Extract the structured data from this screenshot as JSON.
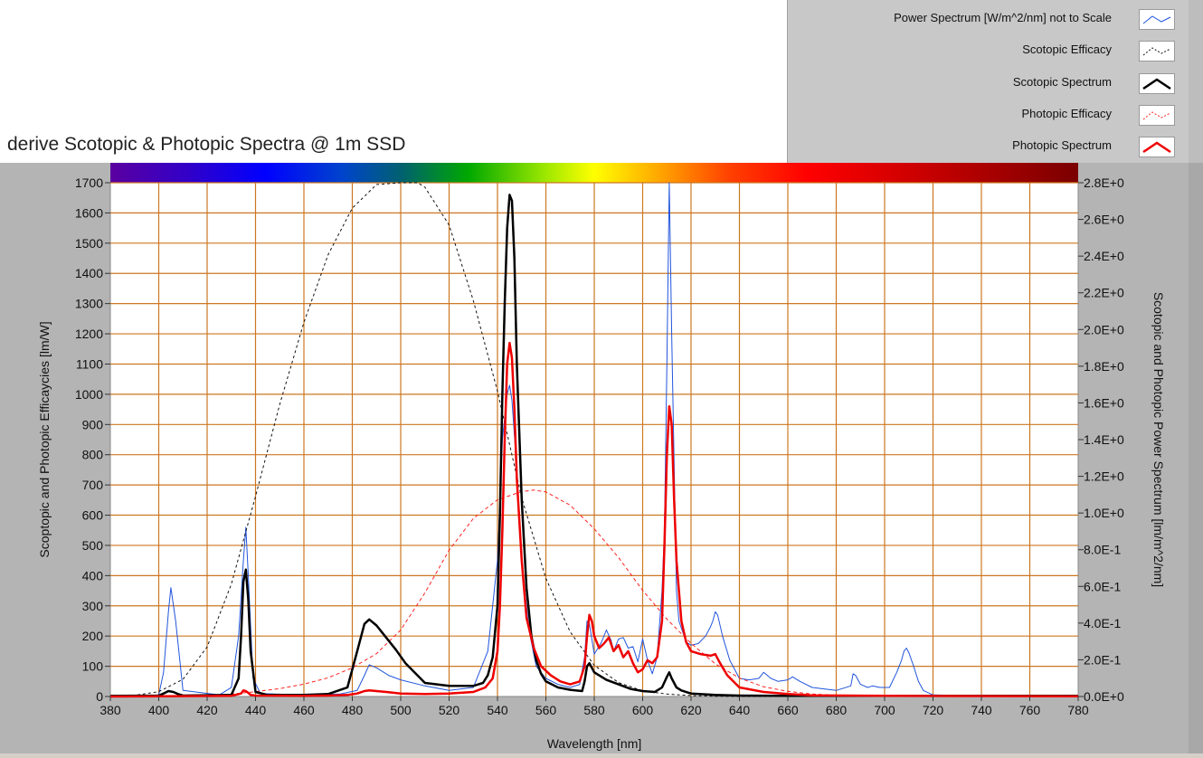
{
  "title": "derive Scotopic & Photopic Spectra @ 1m SSD",
  "legend": [
    {
      "label": "Power Spectrum [W/m^2/nm] not to Scale",
      "color": "#2255dd",
      "style": "thin"
    },
    {
      "label": "Scotopic Efficacy",
      "color": "#111111",
      "style": "dashed"
    },
    {
      "label": "Scotopic Spectrum",
      "color": "#000000",
      "style": "thick"
    },
    {
      "label": "Photopic Efficacy",
      "color": "#ff2222",
      "style": "dashed"
    },
    {
      "label": "Photopic Spectrum",
      "color": "#ee0000",
      "style": "thick"
    }
  ],
  "chart_data": {
    "type": "line",
    "xlabel": "Wavelength [nm]",
    "ylabel": "Scoptopic and Photopic Efficaycies [lm/W]",
    "y2label": "Scotopic and Photopic Power Spectrum [lm/m^2/nm]",
    "xlim": [
      380,
      780
    ],
    "ylim": [
      0,
      1700
    ],
    "y2lim": [
      0,
      2.8
    ],
    "x_ticks": [
      "380",
      "400",
      "420",
      "440",
      "460",
      "480",
      "500",
      "520",
      "540",
      "560",
      "580",
      "600",
      "620",
      "640",
      "660",
      "680",
      "700",
      "720",
      "740",
      "760",
      "780"
    ],
    "y_ticks": [
      "0",
      "100",
      "200",
      "300",
      "400",
      "500",
      "600",
      "700",
      "800",
      "900",
      "1000",
      "1100",
      "1200",
      "1300",
      "1400",
      "1500",
      "1600",
      "1700"
    ],
    "y2_ticks": [
      "0.0E+0",
      "2.0E-1",
      "4.0E-1",
      "6.0E-1",
      "8.0E-1",
      "1.0E+0",
      "1.2E+0",
      "1.4E+0",
      "1.6E+0",
      "1.8E+0",
      "2.0E+0",
      "2.2E+0",
      "2.4E+0",
      "2.6E+0",
      "2.8E+0"
    ],
    "grid": true,
    "colors": {
      "plot_bg": "#ffffff",
      "grid": "#cc7722",
      "frame": "#b4b4b4"
    },
    "series": [
      {
        "name": "Power Spectrum [W/m^2/nm] not to Scale",
        "color": "#2255dd",
        "width": 1,
        "dash": "",
        "x": [
          380,
          395,
          400,
          402,
          404,
          405,
          407,
          410,
          425,
          430,
          433,
          435,
          436,
          437,
          439,
          442,
          460,
          475,
          482,
          485,
          487,
          490,
          495,
          500,
          510,
          520,
          530,
          536,
          540,
          542,
          544,
          545,
          546,
          548,
          550,
          553,
          556,
          560,
          565,
          570,
          574,
          576,
          577,
          578,
          579,
          580,
          583,
          585,
          587,
          588,
          590,
          592,
          594,
          596,
          598,
          600,
          602,
          604,
          606,
          608,
          609,
          610,
          611,
          612,
          614,
          615,
          618,
          620,
          623,
          626,
          628,
          629,
          630,
          631,
          633,
          636,
          640,
          644,
          648,
          650,
          653,
          656,
          660,
          662,
          665,
          670,
          680,
          686,
          687,
          688,
          690,
          693,
          695,
          698,
          702,
          705,
          707,
          708,
          709,
          710,
          712,
          714,
          716,
          720,
          740,
          760,
          780
        ],
        "y": [
          3,
          3,
          5,
          80,
          280,
          360,
          250,
          20,
          5,
          30,
          200,
          450,
          560,
          400,
          60,
          10,
          5,
          8,
          20,
          70,
          105,
          95,
          70,
          55,
          35,
          20,
          30,
          150,
          450,
          850,
          1000,
          1030,
          980,
          750,
          450,
          220,
          100,
          60,
          40,
          30,
          40,
          130,
          250,
          240,
          190,
          140,
          180,
          220,
          185,
          150,
          190,
          195,
          160,
          165,
          115,
          190,
          120,
          75,
          130,
          350,
          550,
          1100,
          1700,
          1200,
          350,
          250,
          180,
          170,
          175,
          200,
          230,
          250,
          280,
          270,
          200,
          120,
          60,
          55,
          60,
          80,
          60,
          50,
          55,
          65,
          50,
          30,
          20,
          35,
          75,
          70,
          40,
          30,
          35,
          30,
          30,
          80,
          120,
          150,
          160,
          145,
          100,
          50,
          20,
          5,
          2,
          2,
          2
        ]
      },
      {
        "name": "Scotopic Efficacy",
        "color": "#111111",
        "width": 1,
        "dash": "3,3",
        "x": [
          380,
          390,
          400,
          410,
          420,
          430,
          440,
          450,
          460,
          470,
          480,
          490,
          500,
          507,
          510,
          520,
          530,
          540,
          550,
          560,
          570,
          580,
          590,
          600,
          610,
          620,
          630,
          640,
          650,
          660,
          670,
          680
        ],
        "y": [
          1,
          4,
          16,
          57,
          164,
          372,
          662,
          967,
          1238,
          1462,
          1616,
          1694,
          1700,
          1700,
          1685,
          1560,
          1310,
          1010,
          657,
          391,
          214,
          103,
          46,
          19,
          8,
          3,
          1,
          0,
          0,
          0,
          0,
          0
        ]
      },
      {
        "name": "Scotopic Spectrum",
        "color": "#000000",
        "width": 2.5,
        "dash": "",
        "x": [
          380,
          400,
          402,
          404,
          406,
          408,
          410,
          430,
          433,
          434,
          435,
          436,
          437,
          438,
          440,
          445,
          460,
          470,
          478,
          482,
          485,
          487,
          490,
          494,
          498,
          502,
          510,
          520,
          530,
          534,
          536,
          538,
          540,
          541,
          542,
          543,
          544,
          545,
          546,
          547,
          548,
          550,
          552,
          554,
          556,
          558,
          560,
          565,
          570,
          575,
          576,
          577,
          578,
          580,
          585,
          590,
          595,
          600,
          605,
          608,
          610,
          611,
          612,
          614,
          616,
          620,
          630,
          640,
          660,
          700,
          780
        ],
        "y": [
          2,
          3,
          10,
          18,
          15,
          8,
          3,
          5,
          60,
          200,
          380,
          420,
          320,
          150,
          15,
          5,
          5,
          8,
          30,
          150,
          240,
          255,
          235,
          195,
          155,
          110,
          45,
          35,
          35,
          45,
          70,
          130,
          300,
          600,
          1000,
          1300,
          1550,
          1660,
          1640,
          1450,
          1100,
          650,
          360,
          200,
          120,
          75,
          50,
          30,
          22,
          18,
          50,
          100,
          110,
          80,
          55,
          40,
          25,
          18,
          15,
          30,
          65,
          80,
          60,
          30,
          20,
          10,
          5,
          3,
          2,
          2,
          2
        ]
      },
      {
        "name": "Photopic Efficacy",
        "color": "#ff2222",
        "width": 1,
        "dash": "4,3",
        "x": [
          380,
          400,
          410,
          420,
          430,
          440,
          450,
          460,
          470,
          480,
          490,
          500,
          510,
          520,
          530,
          540,
          550,
          555,
          560,
          570,
          580,
          590,
          600,
          610,
          620,
          630,
          640,
          650,
          660,
          670,
          680,
          690,
          700,
          720,
          740,
          760,
          780
        ],
        "y": [
          0,
          1,
          1,
          3,
          8,
          16,
          26,
          41,
          62,
          95,
          142,
          220,
          343,
          484,
          589,
          651,
          678,
          683,
          677,
          633,
          555,
          460,
          351,
          256,
          176,
          108,
          61,
          32,
          17,
          8,
          4,
          2,
          1,
          0,
          0,
          0,
          0
        ]
      },
      {
        "name": "Photopic Spectrum",
        "color": "#ee0000",
        "width": 2.5,
        "dash": "",
        "x": [
          380,
          400,
          430,
          434,
          435,
          436,
          437,
          438,
          440,
          460,
          470,
          478,
          482,
          485,
          487,
          490,
          495,
          500,
          510,
          520,
          530,
          535,
          538,
          540,
          541,
          542,
          543,
          544,
          545,
          546,
          547,
          548,
          550,
          552,
          555,
          558,
          562,
          566,
          570,
          574,
          576,
          577,
          578,
          579,
          580,
          582,
          584,
          586,
          588,
          590,
          592,
          594,
          596,
          598,
          600,
          602,
          604,
          606,
          608,
          609,
          610,
          611,
          612,
          613,
          614,
          616,
          618,
          620,
          624,
          628,
          630,
          632,
          635,
          640,
          650,
          660,
          670,
          700,
          780
        ],
        "y": [
          0,
          1,
          2,
          10,
          20,
          18,
          12,
          5,
          3,
          2,
          3,
          5,
          10,
          18,
          20,
          18,
          14,
          10,
          8,
          10,
          15,
          30,
          60,
          150,
          300,
          550,
          850,
          1100,
          1170,
          1120,
          950,
          720,
          450,
          260,
          160,
          100,
          70,
          50,
          40,
          50,
          100,
          200,
          270,
          250,
          200,
          160,
          175,
          195,
          150,
          170,
          130,
          150,
          110,
          80,
          90,
          120,
          110,
          130,
          250,
          500,
          800,
          960,
          900,
          650,
          450,
          250,
          180,
          150,
          140,
          135,
          140,
          110,
          70,
          30,
          15,
          8,
          4,
          2,
          1
        ]
      }
    ]
  }
}
